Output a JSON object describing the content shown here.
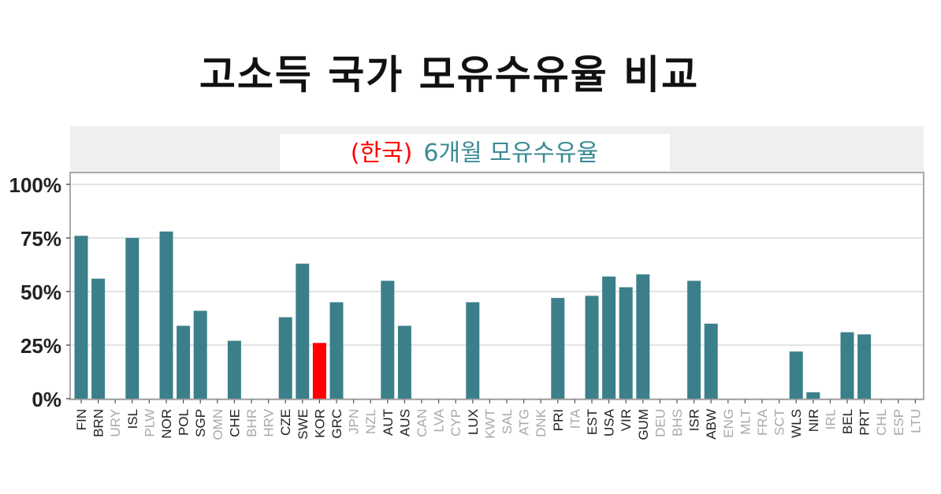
{
  "page_title": "고소득 국가 모유수유율 비교",
  "chart_data": {
    "type": "bar",
    "title": "",
    "panel_label_prefix": "(한국)",
    "panel_label_main": "6개월 모유수유율",
    "xlabel": "",
    "ylabel": "",
    "ylim": [
      0,
      100
    ],
    "yticks": [
      0,
      25,
      50,
      75,
      100
    ],
    "ytick_labels": [
      "0%",
      "25%",
      "50%",
      "75%",
      "100%"
    ],
    "grid": true,
    "legend": "none",
    "categories": [
      "FIN",
      "BRN",
      "URY",
      "ISL",
      "PLW",
      "NOR",
      "POL",
      "SGP",
      "OMN",
      "CHE",
      "BHR",
      "HRV",
      "CZE",
      "SWE",
      "KOR",
      "GRC",
      "JPN",
      "NZL",
      "AUT",
      "AUS",
      "CAN",
      "LVA",
      "CYP",
      "LUX",
      "KWT",
      "SAL",
      "ATG",
      "DNK",
      "PRI",
      "ITA",
      "EST",
      "USA",
      "VIR",
      "GUM",
      "DEU",
      "BHS",
      "ISR",
      "ABW",
      "ENG",
      "MLT",
      "FRA",
      "SCT",
      "WLS",
      "NIR",
      "IRL",
      "BEL",
      "PRT",
      "CHL",
      "ESP",
      "LTU"
    ],
    "values": [
      76,
      56,
      null,
      75,
      null,
      78,
      34,
      41,
      null,
      27,
      null,
      null,
      38,
      63,
      26,
      45,
      null,
      null,
      55,
      34,
      null,
      null,
      null,
      45,
      null,
      null,
      null,
      null,
      47,
      null,
      48,
      57,
      52,
      58,
      null,
      null,
      55,
      35,
      null,
      null,
      null,
      null,
      22,
      3,
      null,
      31,
      30,
      null,
      null,
      null
    ],
    "highlight": "KOR",
    "colors": {
      "bar": "#3b7f8a",
      "highlight": "#ff0000",
      "label_has_data": "#222222",
      "label_no_data": "#a9a9a9",
      "strip_bg": "#efefef",
      "prefix_text": "#ff0000",
      "main_text": "#3b8a95",
      "grid": "#e3e3e3",
      "panel_border": "#aaaaaa"
    }
  }
}
